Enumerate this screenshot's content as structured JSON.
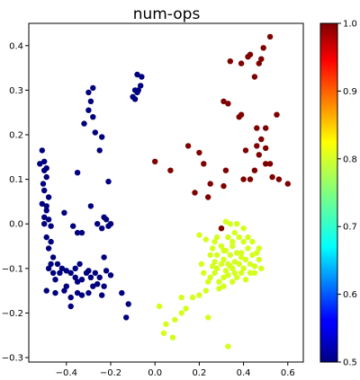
{
  "chart_data": {
    "type": "scatter",
    "title": "num-ops",
    "xlabel": "",
    "ylabel": "",
    "xlim": [
      -0.57,
      0.67
    ],
    "ylim": [
      -0.31,
      0.45
    ],
    "x_ticks": [
      -0.4,
      -0.2,
      0.0,
      0.2,
      0.4,
      0.6
    ],
    "x_tick_labels": [
      "−0.4",
      "−0.2",
      "0.0",
      "0.2",
      "0.4",
      "0.6"
    ],
    "y_ticks": [
      -0.3,
      -0.2,
      -0.1,
      0.0,
      0.1,
      0.2,
      0.3,
      0.4
    ],
    "y_tick_labels": [
      "−0.3",
      "−0.2",
      "−0.1",
      "0.0",
      "0.1",
      "0.2",
      "0.3",
      "0.4"
    ],
    "colorbar": {
      "colormap": "jet",
      "range": [
        0.5,
        1.0
      ],
      "ticks": [
        0.5,
        0.6,
        0.7,
        0.8,
        0.9,
        1.0
      ],
      "tick_labels": [
        "0.5",
        "0.6",
        "0.7",
        "0.8",
        "0.9",
        "1.0"
      ]
    },
    "grid": false,
    "series": [
      {
        "color_value": 0.5,
        "color": "#00007f",
        "points": [
          [
            -0.52,
            0.135
          ],
          [
            -0.51,
            0.165
          ],
          [
            -0.5,
            0.12
          ],
          [
            -0.505,
            0.09
          ],
          [
            -0.49,
            0.105
          ],
          [
            -0.5,
            0.14
          ],
          [
            -0.49,
            0.125
          ],
          [
            -0.5,
            0.075
          ],
          [
            -0.48,
            0.06
          ],
          [
            -0.51,
            0.045
          ],
          [
            -0.49,
            0.03
          ],
          [
            -0.5,
            0.0
          ],
          [
            -0.48,
            0.01
          ],
          [
            -0.49,
            0.04
          ],
          [
            -0.5,
            0.015
          ],
          [
            -0.47,
            -0.005
          ],
          [
            -0.49,
            -0.03
          ],
          [
            -0.47,
            -0.04
          ],
          [
            -0.48,
            -0.055
          ],
          [
            -0.46,
            -0.075
          ],
          [
            -0.47,
            -0.09
          ],
          [
            -0.48,
            -0.1
          ],
          [
            -0.46,
            -0.11
          ],
          [
            -0.45,
            -0.125
          ],
          [
            -0.43,
            -0.11
          ],
          [
            -0.42,
            -0.1
          ],
          [
            -0.4,
            -0.105
          ],
          [
            -0.38,
            -0.11
          ],
          [
            -0.36,
            -0.1
          ],
          [
            -0.36,
            -0.12
          ],
          [
            -0.35,
            -0.13
          ],
          [
            -0.33,
            -0.125
          ],
          [
            -0.31,
            -0.11
          ],
          [
            -0.3,
            -0.105
          ],
          [
            -0.29,
            -0.12
          ],
          [
            -0.28,
            -0.14
          ],
          [
            -0.27,
            -0.11
          ],
          [
            -0.25,
            -0.12
          ],
          [
            -0.22,
            -0.105
          ],
          [
            -0.2,
            -0.115
          ],
          [
            -0.23,
            -0.14
          ],
          [
            -0.24,
            -0.16
          ],
          [
            -0.3,
            -0.155
          ],
          [
            -0.33,
            -0.16
          ],
          [
            -0.38,
            -0.165
          ],
          [
            -0.41,
            -0.15
          ],
          [
            -0.4,
            -0.14
          ],
          [
            -0.45,
            -0.155
          ],
          [
            -0.49,
            -0.15
          ],
          [
            -0.35,
            -0.155
          ],
          [
            -0.26,
            -0.135
          ],
          [
            -0.15,
            -0.155
          ],
          [
            -0.12,
            -0.18
          ],
          [
            -0.13,
            -0.21
          ],
          [
            -0.38,
            -0.185
          ],
          [
            -0.44,
            -0.09
          ],
          [
            -0.34,
            -0.09
          ],
          [
            -0.23,
            -0.075
          ],
          [
            -0.41,
            0.025
          ],
          [
            -0.37,
            -0.005
          ],
          [
            -0.33,
            -0.02
          ],
          [
            -0.29,
            0.04
          ],
          [
            -0.26,
            0.0
          ],
          [
            -0.24,
            -0.01
          ],
          [
            -0.22,
            0.01
          ],
          [
            -0.2,
            0.0
          ],
          [
            -0.21,
            -0.005
          ],
          [
            -0.23,
            0.015
          ],
          [
            -0.21,
            0.095
          ],
          [
            -0.25,
            0.165
          ],
          [
            -0.24,
            0.195
          ],
          [
            -0.28,
            0.24
          ],
          [
            -0.32,
            0.225
          ],
          [
            -0.3,
            0.255
          ],
          [
            -0.29,
            0.275
          ],
          [
            -0.3,
            0.295
          ],
          [
            -0.28,
            0.305
          ],
          [
            -0.27,
            0.205
          ],
          [
            -0.35,
            0.115
          ],
          [
            -0.35,
            -0.02
          ],
          [
            -0.08,
            0.335
          ],
          [
            -0.065,
            0.31
          ],
          [
            -0.06,
            0.33
          ],
          [
            -0.075,
            0.3
          ],
          [
            -0.09,
            0.28
          ],
          [
            -0.1,
            0.285
          ],
          [
            -0.08,
            0.295
          ],
          [
            -0.09,
            0.3
          ]
        ]
      },
      {
        "color_value": 0.8,
        "color": "#d4ff1c",
        "points": [
          [
            0.2,
            -0.025
          ],
          [
            0.23,
            -0.035
          ],
          [
            0.26,
            -0.055
          ],
          [
            0.27,
            -0.04
          ],
          [
            0.28,
            -0.07
          ],
          [
            0.3,
            -0.05
          ],
          [
            0.31,
            -0.08
          ],
          [
            0.32,
            -0.06
          ],
          [
            0.33,
            -0.09
          ],
          [
            0.34,
            -0.07
          ],
          [
            0.35,
            -0.1
          ],
          [
            0.36,
            -0.085
          ],
          [
            0.37,
            -0.065
          ],
          [
            0.38,
            -0.09
          ],
          [
            0.39,
            -0.075
          ],
          [
            0.4,
            -0.1
          ],
          [
            0.41,
            -0.08
          ],
          [
            0.42,
            -0.055
          ],
          [
            0.43,
            -0.09
          ],
          [
            0.44,
            -0.07
          ],
          [
            0.45,
            -0.095
          ],
          [
            0.46,
            -0.065
          ],
          [
            0.47,
            -0.08
          ],
          [
            0.48,
            -0.1
          ],
          [
            0.3,
            -0.01
          ],
          [
            0.32,
            0.005
          ],
          [
            0.34,
            0.0
          ],
          [
            0.36,
            -0.02
          ],
          [
            0.38,
            -0.03
          ],
          [
            0.4,
            -0.01
          ],
          [
            0.25,
            -0.12
          ],
          [
            0.27,
            -0.11
          ],
          [
            0.29,
            -0.13
          ],
          [
            0.31,
            -0.12
          ],
          [
            0.33,
            -0.115
          ],
          [
            0.35,
            -0.13
          ],
          [
            0.37,
            -0.12
          ],
          [
            0.39,
            -0.11
          ],
          [
            0.41,
            -0.125
          ],
          [
            0.26,
            -0.095
          ],
          [
            0.28,
            -0.1
          ],
          [
            0.3,
            -0.09
          ],
          [
            0.32,
            -0.105
          ],
          [
            0.34,
            -0.095
          ],
          [
            0.36,
            -0.11
          ],
          [
            0.22,
            -0.11
          ],
          [
            0.24,
            -0.13
          ],
          [
            0.21,
            -0.09
          ],
          [
            0.25,
            -0.07
          ],
          [
            0.28,
            -0.03
          ],
          [
            0.33,
            -0.03
          ],
          [
            0.35,
            -0.05
          ],
          [
            0.37,
            0.0
          ],
          [
            0.4,
            -0.04
          ],
          [
            0.42,
            -0.03
          ],
          [
            0.44,
            -0.04
          ],
          [
            0.47,
            -0.055
          ],
          [
            0.29,
            -0.145
          ],
          [
            0.31,
            -0.14
          ],
          [
            0.23,
            -0.15
          ],
          [
            0.2,
            -0.16
          ],
          [
            0.17,
            -0.165
          ],
          [
            0.12,
            -0.165
          ],
          [
            0.24,
            -0.21
          ],
          [
            0.14,
            -0.19
          ],
          [
            0.12,
            -0.2
          ],
          [
            0.09,
            -0.215
          ],
          [
            0.02,
            -0.185
          ],
          [
            0.05,
            -0.225
          ],
          [
            0.08,
            -0.255
          ],
          [
            0.04,
            -0.245
          ],
          [
            0.33,
            -0.275
          ],
          [
            0.39,
            -0.065
          ],
          [
            0.35,
            -0.04
          ],
          [
            0.31,
            -0.06
          ],
          [
            0.27,
            -0.085
          ],
          [
            0.43,
            -0.11
          ],
          [
            0.45,
            -0.11
          ]
        ]
      },
      {
        "color_value": 1.0,
        "color": "#7f0000",
        "points": [
          [
            0.52,
            0.42
          ],
          [
            0.49,
            0.395
          ],
          [
            0.48,
            0.37
          ],
          [
            0.47,
            0.36
          ],
          [
            0.45,
            0.33
          ],
          [
            0.43,
            0.38
          ],
          [
            0.42,
            0.375
          ],
          [
            0.39,
            0.36
          ],
          [
            0.34,
            0.365
          ],
          [
            0.31,
            0.275
          ],
          [
            0.33,
            0.27
          ],
          [
            0.38,
            0.24
          ],
          [
            0.39,
            0.245
          ],
          [
            0.46,
            0.215
          ],
          [
            0.5,
            0.215
          ],
          [
            0.55,
            0.245
          ],
          [
            0.48,
            0.19
          ],
          [
            0.5,
            0.17
          ],
          [
            0.46,
            0.175
          ],
          [
            0.47,
            0.155
          ],
          [
            0.45,
            0.12
          ],
          [
            0.5,
            0.135
          ],
          [
            0.52,
            0.135
          ],
          [
            0.53,
            0.105
          ],
          [
            0.56,
            0.1
          ],
          [
            0.6,
            0.09
          ],
          [
            0.41,
            0.165
          ],
          [
            0.4,
            0.1
          ],
          [
            0.43,
            0.1
          ],
          [
            0.32,
            0.12
          ],
          [
            0.31,
            0.085
          ],
          [
            0.22,
            0.135
          ],
          [
            0.2,
            0.16
          ],
          [
            0.15,
            0.175
          ],
          [
            0.25,
            0.09
          ],
          [
            0.24,
            0.06
          ],
          [
            0.18,
            0.07
          ],
          [
            0.07,
            0.12
          ],
          [
            0.0,
            0.14
          ],
          [
            0.3,
            -0.01
          ]
        ]
      }
    ]
  }
}
